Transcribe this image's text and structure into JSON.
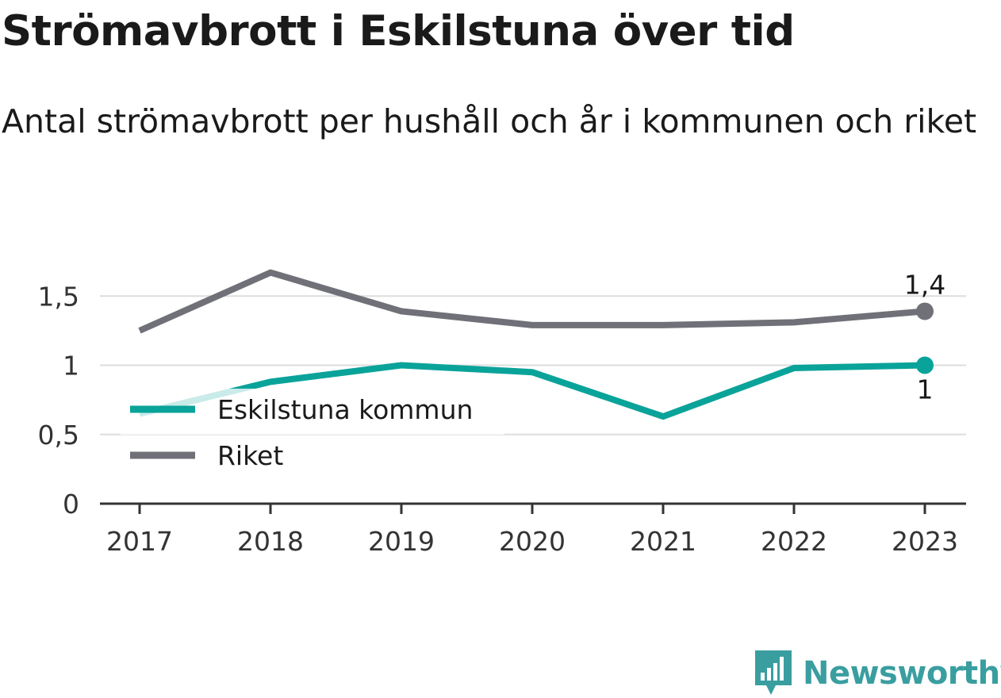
{
  "title": "Strömavbrott i Eskilstuna över tid",
  "subtitle": "Antal strömavbrott per hushåll och år i kommunen och riket",
  "brand": "Newsworthy",
  "chart_data": {
    "type": "line",
    "title": "Strömavbrott i Eskilstuna över tid",
    "subtitle": "Antal strömavbrott per hushåll och år i kommunen och riket",
    "x": [
      "2017",
      "2018",
      "2019",
      "2020",
      "2021",
      "2022",
      "2023"
    ],
    "y_ticks": [
      "0",
      "0,5",
      "1",
      "1,5"
    ],
    "ylim": [
      0,
      1.75
    ],
    "grid": true,
    "legend_placement": "inside-bottom-left",
    "series": [
      {
        "name": "Eskilstuna kommun",
        "color": "#0aa39a",
        "values": [
          0.65,
          0.88,
          1.0,
          0.95,
          0.63,
          0.98,
          1.0
        ],
        "end_label": "1"
      },
      {
        "name": "Riket",
        "color": "#707078",
        "values": [
          1.25,
          1.67,
          1.39,
          1.29,
          1.29,
          1.31,
          1.39
        ],
        "end_label": "1,4"
      }
    ]
  }
}
